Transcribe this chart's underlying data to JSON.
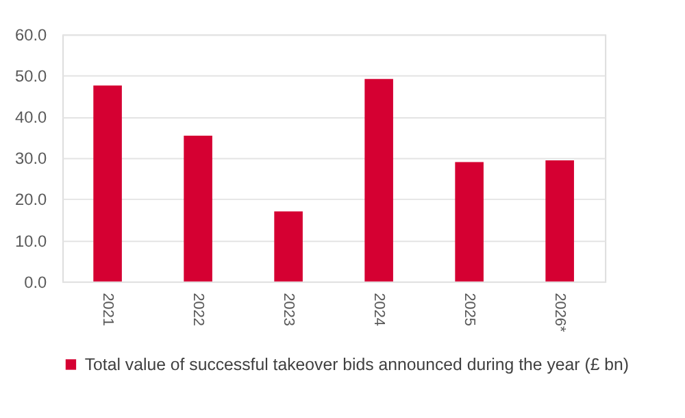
{
  "chart_data": {
    "type": "bar",
    "categories": [
      "2021",
      "2022",
      "2023",
      "2024",
      "2025",
      "2026*"
    ],
    "series": [
      {
        "name": "Total value of successful takeover bids announced during the year (£ bn)",
        "color": "#d50032",
        "values": [
          47.6,
          35.4,
          17.0,
          49.2,
          29.0,
          29.4
        ]
      }
    ],
    "ylim": [
      0,
      60
    ],
    "yticks": [
      {
        "value": 0,
        "label": "0.0"
      },
      {
        "value": 10,
        "label": "10.0"
      },
      {
        "value": 20,
        "label": "20.0"
      },
      {
        "value": 30,
        "label": "30.0"
      },
      {
        "value": 40,
        "label": "40.0"
      },
      {
        "value": 50,
        "label": "50.0"
      },
      {
        "value": 60,
        "label": "60.0"
      }
    ],
    "grid": "y",
    "legend": "bottom"
  }
}
